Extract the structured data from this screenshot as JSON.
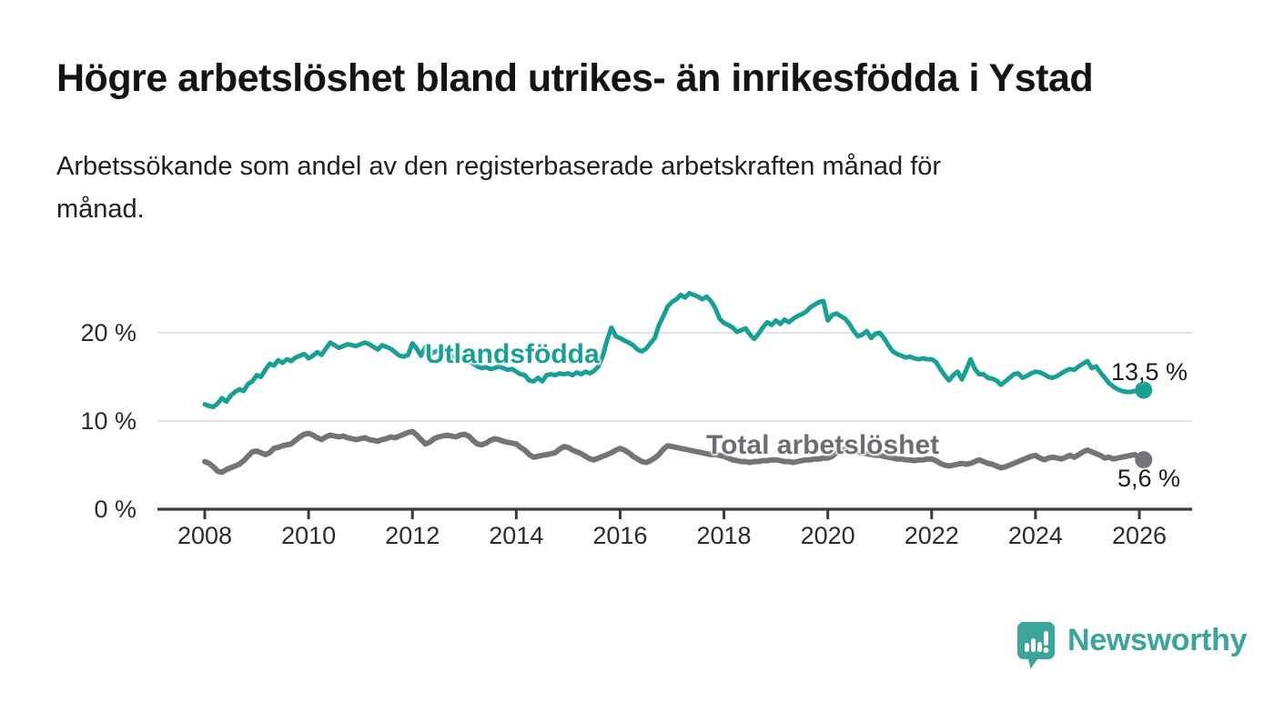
{
  "header": {
    "title": "Högre arbetslöshet bland utrikes- än inrikesfödda i Ystad",
    "subtitle_lines": [
      "Arbetssökande som andel av den registerbaserade arbetskraften månad för",
      "månad."
    ]
  },
  "chart_data": {
    "type": "line",
    "title": "Högre arbetslöshet bland utrikes- än inrikesfödda i Ystad",
    "subtitle": "Arbetssökande som andel av den registerbaserade arbetskraften månad för månad.",
    "x_start": "2008-01",
    "x_end": "2026-02",
    "x_tick_years": [
      2008,
      2010,
      2012,
      2014,
      2016,
      2018,
      2020,
      2022,
      2024,
      2026
    ],
    "x_tick_labels": [
      "2008",
      "2010",
      "2012",
      "2014",
      "2016",
      "2018",
      "2020",
      "2022",
      "2024",
      "2026"
    ],
    "y_ticks": [
      0,
      10,
      20
    ],
    "y_tick_labels": [
      "0 %",
      "10 %",
      "20 %"
    ],
    "ylim": [
      0,
      26
    ],
    "grid": "horizontal gridlines at 10 and 20, dark baseline at 0",
    "legend_position": "inline-labels-on-lines",
    "colors": {
      "utlandsfodda": "#18a095",
      "total": "#747478",
      "axis": "#3a3a3a",
      "gridline": "#dcdcdc",
      "text": "#1a1a1a"
    },
    "series": [
      {
        "name": "Utlandsfödda",
        "color": "#18a095",
        "end_label": "13,5 %",
        "end_value": 13.5,
        "values": [
          11.9,
          11.7,
          11.6,
          12.0,
          12.6,
          12.2,
          12.9,
          13.3,
          13.6,
          13.4,
          14.2,
          14.5,
          15.2,
          15.0,
          15.8,
          16.5,
          16.3,
          16.9,
          16.6,
          17.0,
          16.8,
          17.2,
          17.4,
          17.6,
          17.1,
          17.4,
          17.8,
          17.5,
          18.2,
          18.9,
          18.6,
          18.3,
          18.5,
          18.7,
          18.6,
          18.5,
          18.7,
          18.9,
          18.7,
          18.4,
          18.1,
          18.6,
          18.4,
          18.2,
          17.8,
          17.4,
          17.3,
          17.5,
          18.8,
          18.2,
          17.4,
          18.4,
          17.5,
          17.8,
          18.0,
          17.8,
          17.6,
          17.4,
          17.2,
          17.3,
          17.0,
          16.8,
          16.5,
          16.2,
          16.0,
          16.1,
          15.9,
          16.0,
          16.2,
          16.0,
          15.8,
          15.9,
          15.6,
          15.3,
          15.2,
          14.6,
          14.5,
          14.9,
          14.5,
          15.2,
          15.3,
          15.2,
          15.4,
          15.3,
          15.4,
          15.2,
          15.5,
          15.3,
          15.6,
          15.4,
          15.7,
          16.2,
          17.4,
          19.2,
          20.6,
          19.6,
          19.4,
          19.1,
          18.9,
          18.6,
          18.1,
          17.9,
          18.2,
          18.8,
          19.4,
          20.9,
          21.9,
          23.0,
          23.5,
          23.8,
          24.3,
          24.0,
          24.5,
          24.3,
          24.1,
          23.8,
          24.1,
          23.6,
          22.8,
          21.6,
          21.1,
          20.9,
          20.6,
          20.1,
          20.3,
          20.5,
          19.8,
          19.3,
          19.9,
          20.6,
          21.2,
          20.9,
          21.4,
          21.0,
          21.5,
          21.2,
          21.6,
          21.9,
          22.1,
          22.4,
          22.9,
          23.2,
          23.5,
          23.6,
          21.4,
          22.0,
          22.2,
          21.9,
          21.6,
          21.0,
          20.2,
          19.6,
          19.8,
          20.2,
          19.4,
          19.9,
          20.0,
          19.4,
          18.6,
          17.9,
          17.6,
          17.4,
          17.2,
          17.3,
          17.1,
          17.0,
          17.1,
          17.0,
          17.0,
          16.7,
          15.9,
          15.2,
          14.6,
          15.2,
          15.6,
          14.7,
          15.8,
          17.0,
          15.9,
          15.3,
          15.3,
          14.9,
          14.8,
          14.6,
          14.1,
          14.5,
          14.9,
          15.3,
          15.4,
          14.9,
          15.1,
          15.4,
          15.6,
          15.5,
          15.3,
          15.0,
          14.9,
          15.1,
          15.4,
          15.7,
          15.9,
          15.8,
          16.2,
          16.5,
          16.8,
          16.0,
          16.2,
          15.5,
          14.9,
          14.3,
          13.9,
          13.6,
          13.4,
          13.3,
          13.3,
          13.4,
          13.4,
          13.5
        ]
      },
      {
        "name": "Total arbetslöshet",
        "color": "#747478",
        "end_label": "5,6 %",
        "end_value": 5.6,
        "values": [
          5.4,
          5.2,
          4.8,
          4.3,
          4.2,
          4.5,
          4.7,
          4.9,
          5.1,
          5.5,
          6.0,
          6.5,
          6.6,
          6.4,
          6.2,
          6.4,
          6.9,
          7.0,
          7.2,
          7.3,
          7.4,
          7.8,
          8.2,
          8.5,
          8.6,
          8.4,
          8.1,
          7.9,
          8.2,
          8.4,
          8.3,
          8.2,
          8.3,
          8.1,
          8.0,
          7.9,
          8.0,
          8.1,
          7.9,
          7.8,
          7.7,
          7.9,
          8.0,
          8.2,
          8.1,
          8.3,
          8.5,
          8.7,
          8.8,
          8.4,
          7.9,
          7.4,
          7.6,
          8.0,
          8.2,
          8.3,
          8.4,
          8.3,
          8.2,
          8.4,
          8.5,
          8.3,
          7.8,
          7.4,
          7.3,
          7.5,
          7.8,
          8.0,
          7.9,
          7.7,
          7.6,
          7.5,
          7.4,
          7.0,
          6.7,
          6.2,
          5.9,
          6.0,
          6.1,
          6.2,
          6.3,
          6.4,
          6.8,
          7.1,
          7.0,
          6.7,
          6.5,
          6.3,
          6.0,
          5.7,
          5.6,
          5.8,
          6.0,
          6.2,
          6.4,
          6.7,
          6.9,
          6.7,
          6.4,
          6.0,
          5.7,
          5.4,
          5.3,
          5.5,
          5.8,
          6.2,
          6.8,
          7.2,
          7.1,
          7.0,
          6.9,
          6.8,
          6.7,
          6.6,
          6.5,
          6.4,
          6.3,
          6.2,
          6.2,
          6.1,
          6.0,
          5.8,
          5.6,
          5.5,
          5.4,
          5.4,
          5.3,
          5.4,
          5.4,
          5.5,
          5.5,
          5.6,
          5.6,
          5.5,
          5.4,
          5.4,
          5.3,
          5.4,
          5.5,
          5.6,
          5.6,
          5.7,
          5.7,
          5.8,
          5.8,
          6.0,
          6.4,
          6.7,
          6.8,
          6.7,
          6.6,
          6.5,
          6.4,
          6.3,
          6.2,
          6.1,
          6.1,
          6.0,
          5.9,
          5.8,
          5.7,
          5.7,
          5.6,
          5.6,
          5.5,
          5.6,
          5.6,
          5.7,
          5.7,
          5.5,
          5.2,
          5.0,
          4.9,
          5.0,
          5.1,
          5.2,
          5.1,
          5.2,
          5.4,
          5.6,
          5.4,
          5.2,
          5.1,
          4.9,
          4.7,
          4.8,
          5.0,
          5.2,
          5.4,
          5.6,
          5.8,
          6.0,
          6.1,
          5.8,
          5.6,
          5.8,
          5.9,
          5.8,
          5.7,
          5.9,
          6.1,
          5.9,
          6.2,
          6.5,
          6.7,
          6.5,
          6.3,
          6.1,
          5.8,
          5.9,
          5.7,
          5.8,
          5.9,
          6.0,
          6.1,
          6.2,
          5.8,
          5.6
        ]
      }
    ]
  },
  "labels": {
    "utlandsfodda": "Utlandsfödda",
    "total": "Total arbetslöshet",
    "end_teal": "13,5 %",
    "end_gray": "5,6 %"
  },
  "branding": {
    "logo_text": "Newsworthy",
    "logo_color": "#3ba49b",
    "logo_icon": "speech-bubble-bar-chart"
  }
}
